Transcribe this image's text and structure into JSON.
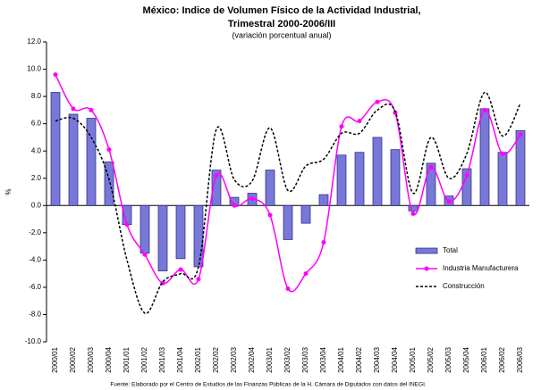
{
  "chart_data": {
    "type": "bar_line",
    "title": "México: Indice de Volumen Físico de la Actividad Industrial,",
    "subtitle": "Trimestral 2000-2006/III",
    "subtitle2": "(variación porcentual anual)",
    "y_label": "%",
    "footnote": "Fuente: Elaborado por el Centro de Estudios de las Finanzas Públicas de la H. Cámara de Diputados con datos del INEGI.",
    "categories": [
      "2000/01",
      "2000/02",
      "2000/03",
      "2000/04",
      "2001/01",
      "2001/02",
      "2001/03",
      "2001/04",
      "2002/01",
      "2002/02",
      "2002/03",
      "2002/04",
      "2003/01",
      "2003/02",
      "2003/03",
      "2003/04",
      "2004/01",
      "2004/02",
      "2004/03",
      "2004/04",
      "2005/01",
      "2005/02",
      "2005/03",
      "2005/04",
      "2006/01",
      "2006/02",
      "2006/03"
    ],
    "series": [
      {
        "name": "Total",
        "type": "bar",
        "color": "#7878d8",
        "values": [
          8.3,
          6.7,
          6.4,
          3.2,
          -1.4,
          -3.5,
          -4.8,
          -3.9,
          -4.5,
          2.6,
          0.6,
          0.9,
          2.6,
          -2.5,
          -1.3,
          0.8,
          3.7,
          3.9,
          5.0,
          4.1,
          -0.4,
          3.1,
          0.7,
          2.7,
          7.1,
          3.9,
          5.5
        ]
      },
      {
        "name": "Industria Manufacturera",
        "type": "line",
        "color": "#ff00ff",
        "values": [
          9.6,
          7.1,
          7.0,
          4.1,
          -1.4,
          -3.6,
          -5.7,
          -4.7,
          -5.4,
          2.2,
          0.0,
          0.5,
          -0.7,
          -6.1,
          -5.0,
          -2.7,
          5.8,
          6.2,
          7.6,
          6.8,
          -0.6,
          2.8,
          0.3,
          2.2,
          7.0,
          3.8,
          5.2
        ]
      },
      {
        "name": "Construcción",
        "type": "dashed",
        "color": "#000000",
        "values": [
          6.2,
          6.4,
          5.0,
          1.9,
          -4.0,
          -7.9,
          -5.6,
          -5.0,
          -4.5,
          5.6,
          1.9,
          1.8,
          5.7,
          1.1,
          2.9,
          3.4,
          5.3,
          5.3,
          7.0,
          6.9,
          0.9,
          5.0,
          2.0,
          3.8,
          8.3,
          5.1,
          7.5
        ]
      }
    ],
    "ylim": [
      -10,
      12
    ],
    "yticks": [
      {
        "value": -10,
        "label": "-10.0"
      },
      {
        "value": -8,
        "label": "-8.0"
      },
      {
        "value": -6,
        "label": "-6.0"
      },
      {
        "value": -4,
        "label": "-4.0"
      },
      {
        "value": -2,
        "label": "-2.0"
      },
      {
        "value": 0,
        "label": "0.0"
      },
      {
        "value": 2,
        "label": "2.0"
      },
      {
        "value": 4,
        "label": "4.0"
      },
      {
        "value": 6,
        "label": "6.0"
      },
      {
        "value": 8,
        "label": "8.0"
      },
      {
        "value": 10,
        "label": "10.0"
      },
      {
        "value": 12,
        "label": "12.0"
      }
    ],
    "grid": false,
    "legend": "lower right"
  }
}
